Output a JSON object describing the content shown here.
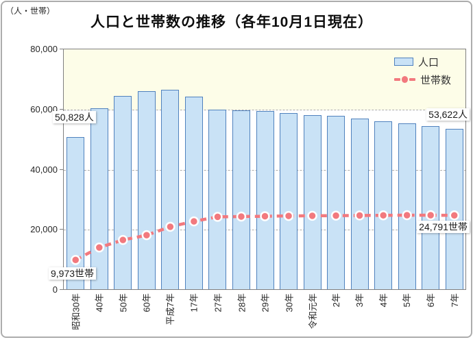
{
  "header": {
    "unit_label": "（人・世帯）",
    "title": "人口と世帯数の推移（各年10月1日現在）"
  },
  "annotations": {
    "pop_first": "50,828人",
    "pop_last": "53,622人",
    "hh_first": "9,973世帯",
    "hh_last": "24,791世帯"
  },
  "chart_data": {
    "type": "bar",
    "title": "人口と世帯数の推移（各年10月1日現在）",
    "unit": "（人・世帯）",
    "categories": [
      "昭和30年",
      "40年",
      "50年",
      "60年",
      "平成7年",
      "17年",
      "27年",
      "28年",
      "29年",
      "30年",
      "令和元年",
      "2年",
      "3年",
      "4年",
      "5年",
      "6年",
      "7年"
    ],
    "series": [
      {
        "name": "人口",
        "type": "bar",
        "values": [
          50828,
          60400,
          64400,
          66100,
          66500,
          64300,
          59900,
          59700,
          59400,
          58800,
          58100,
          57900,
          57000,
          56100,
          55400,
          54500,
          53622
        ]
      },
      {
        "name": "世帯数",
        "type": "line",
        "values": [
          9973,
          14100,
          16600,
          18200,
          21000,
          22800,
          24300,
          24400,
          24500,
          24600,
          24650,
          24700,
          24750,
          24800,
          24850,
          24850,
          24791
        ]
      }
    ],
    "ylim": [
      0,
      80000
    ],
    "yticks": [
      0,
      20000,
      40000,
      60000,
      80000
    ],
    "ytick_labels": [
      "0",
      "20,000",
      "40,000",
      "60,000",
      "80,000"
    ],
    "grid": "dashed-horizontal",
    "legend_position": "top-right-inside",
    "shaded_band": {
      "from": 60000,
      "to": 80000
    },
    "colors": {
      "bar_fill": "#C9E2F6",
      "bar_border": "#4F81BD",
      "line": "#F2797E",
      "band": "#FDFDE8",
      "gridline": "#ABABAB",
      "plot_border": "#7F7F7F"
    }
  }
}
